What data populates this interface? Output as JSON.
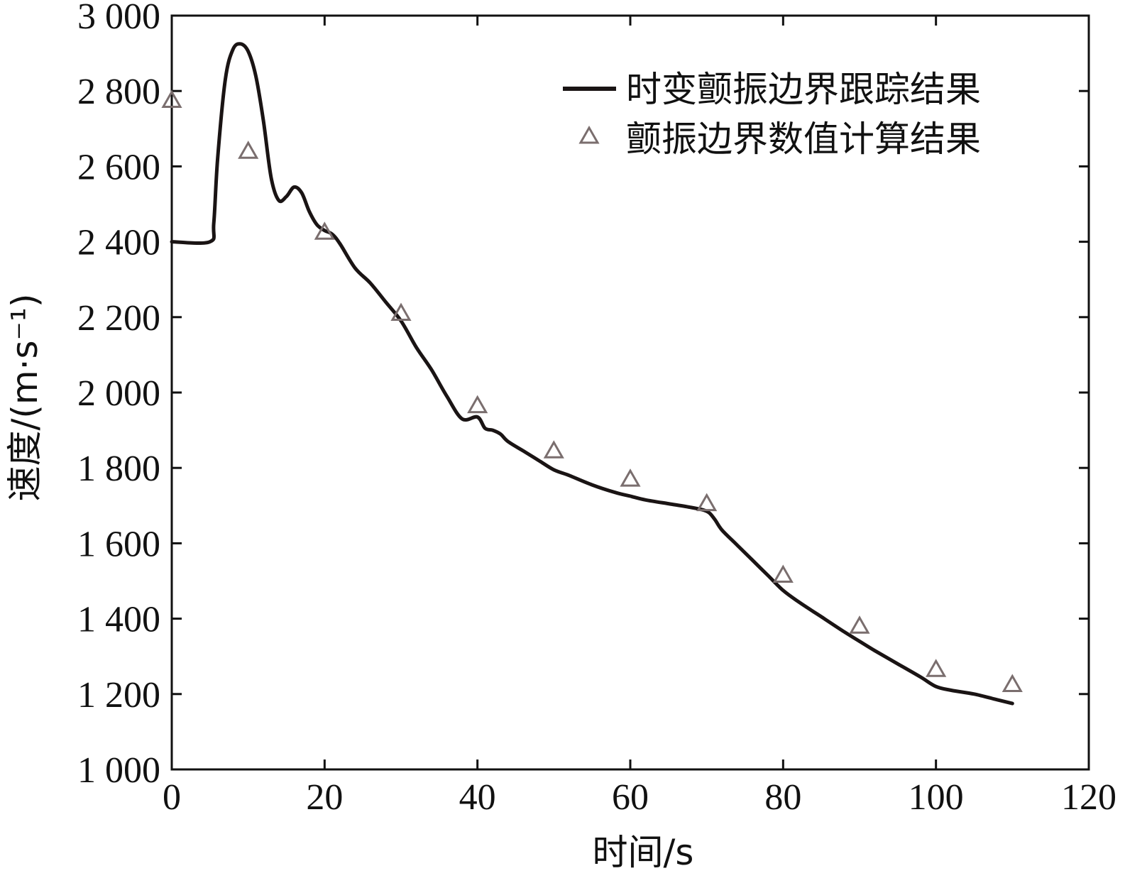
{
  "chart_data": {
    "type": "line",
    "xlabel": "时间/s",
    "ylabel": "速度/(m·s⁻¹)",
    "xlim": [
      0,
      120
    ],
    "ylim": [
      1000,
      3000
    ],
    "xticks": [
      "0",
      "20",
      "40",
      "60",
      "80",
      "100",
      "120"
    ],
    "yticks": [
      "1 000",
      "1 200",
      "1 400",
      "1 600",
      "1 800",
      "2 000",
      "2 200",
      "2 400",
      "2 600",
      "2 800",
      "3 000"
    ],
    "grid": false,
    "legend_position": "top-right",
    "series": [
      {
        "name": "时变颤振边界跟踪结果",
        "style": "line",
        "color": "#1a1414",
        "x": [
          0,
          5,
          5.5,
          6,
          7,
          8,
          9,
          10,
          11,
          12,
          13,
          14,
          15,
          16,
          17,
          18,
          19,
          20,
          21,
          22,
          24,
          26,
          28,
          30,
          32,
          34,
          36,
          38,
          40,
          41,
          42,
          43,
          44,
          46,
          48,
          50,
          52,
          55,
          58,
          60,
          62,
          65,
          68,
          70,
          71,
          72,
          74,
          76,
          78,
          80,
          82,
          85,
          88,
          90,
          92,
          95,
          98,
          100,
          102,
          105,
          108,
          110
        ],
        "y": [
          2400,
          2400,
          2450,
          2620,
          2830,
          2910,
          2925,
          2905,
          2840,
          2720,
          2570,
          2510,
          2520,
          2545,
          2530,
          2480,
          2445,
          2430,
          2420,
          2395,
          2330,
          2290,
          2240,
          2190,
          2120,
          2060,
          1990,
          1930,
          1935,
          1905,
          1900,
          1890,
          1870,
          1845,
          1820,
          1795,
          1780,
          1755,
          1735,
          1725,
          1715,
          1705,
          1695,
          1685,
          1665,
          1635,
          1595,
          1555,
          1515,
          1475,
          1445,
          1405,
          1365,
          1340,
          1315,
          1280,
          1245,
          1220,
          1210,
          1200,
          1185,
          1175
        ]
      },
      {
        "name": "颤振边界数值计算结果",
        "style": "marker-triangle",
        "color": "#7a6e6e",
        "x": [
          0,
          10,
          20,
          30,
          40,
          50,
          60,
          70,
          80,
          90,
          100,
          110
        ],
        "y": [
          2775,
          2640,
          2425,
          2210,
          1965,
          1845,
          1770,
          1705,
          1515,
          1380,
          1265,
          1225
        ]
      }
    ]
  }
}
